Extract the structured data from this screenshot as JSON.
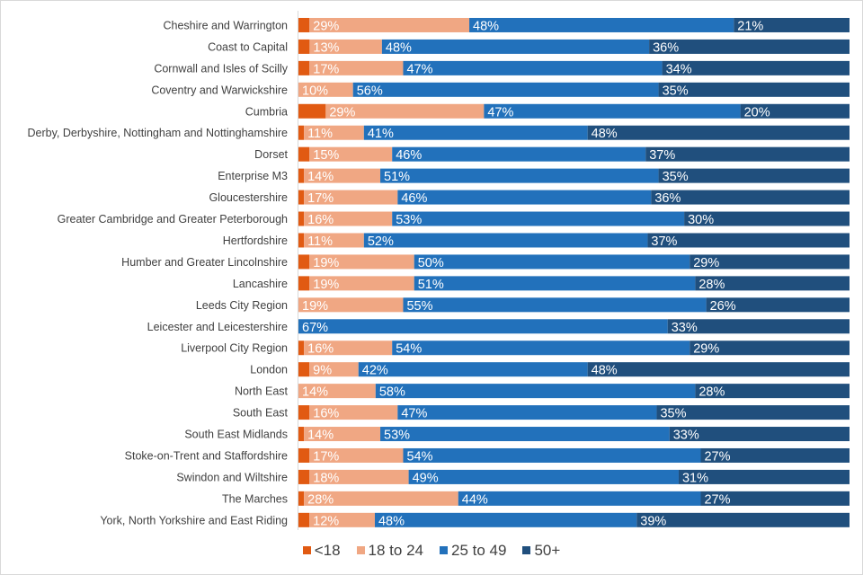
{
  "chart_data": {
    "type": "bar",
    "orientation": "horizontal",
    "stacked": "100%",
    "title": "",
    "xlabel": "",
    "ylabel": "",
    "xlim": [
      0,
      100
    ],
    "grid": false,
    "legend_position": "bottom",
    "categories": [
      "Cheshire and Warrington",
      "Coast to Capital",
      "Cornwall and Isles of Scilly",
      "Coventry and Warwickshire",
      "Cumbria",
      "Derby, Derbyshire, Nottingham and Nottinghamshire",
      "Dorset",
      "Enterprise M3",
      "Gloucestershire",
      "Greater Cambridge and Greater Peterborough",
      "Hertfordshire",
      "Humber and Greater Lincolnshire",
      "Lancashire",
      "Leeds City Region",
      "Leicester and Leicestershire",
      "Liverpool City Region",
      "London",
      "North East",
      "South East",
      "South East Midlands",
      "Stoke-on-Trent and Staffordshire",
      "Swindon and Wiltshire",
      "The Marches",
      "York, North Yorkshire and East Riding"
    ],
    "series": [
      {
        "name": "<18",
        "color": "#E15A12",
        "labeled": false,
        "values": [
          2,
          2,
          2,
          0,
          5,
          1,
          2,
          1,
          1,
          1,
          1,
          2,
          2,
          0,
          0,
          1,
          2,
          0,
          2,
          1,
          2,
          2,
          1,
          2
        ]
      },
      {
        "name": "18 to 24",
        "color": "#F0A783",
        "labeled": true,
        "values": [
          29,
          13,
          17,
          10,
          29,
          11,
          15,
          14,
          17,
          16,
          11,
          19,
          19,
          19,
          0,
          16,
          9,
          14,
          16,
          14,
          17,
          18,
          28,
          12
        ]
      },
      {
        "name": "25 to 49",
        "color": "#2271BB",
        "labeled": true,
        "values": [
          48,
          48,
          47,
          56,
          47,
          41,
          46,
          51,
          46,
          53,
          52,
          50,
          51,
          55,
          67,
          54,
          42,
          58,
          47,
          53,
          54,
          49,
          44,
          48
        ]
      },
      {
        "name": "50+",
        "color": "#204F7D",
        "labeled": true,
        "values": [
          21,
          36,
          34,
          35,
          20,
          48,
          37,
          35,
          36,
          30,
          37,
          29,
          28,
          26,
          33,
          29,
          48,
          28,
          35,
          33,
          27,
          31,
          27,
          39
        ]
      }
    ],
    "value_suffix": "%"
  }
}
